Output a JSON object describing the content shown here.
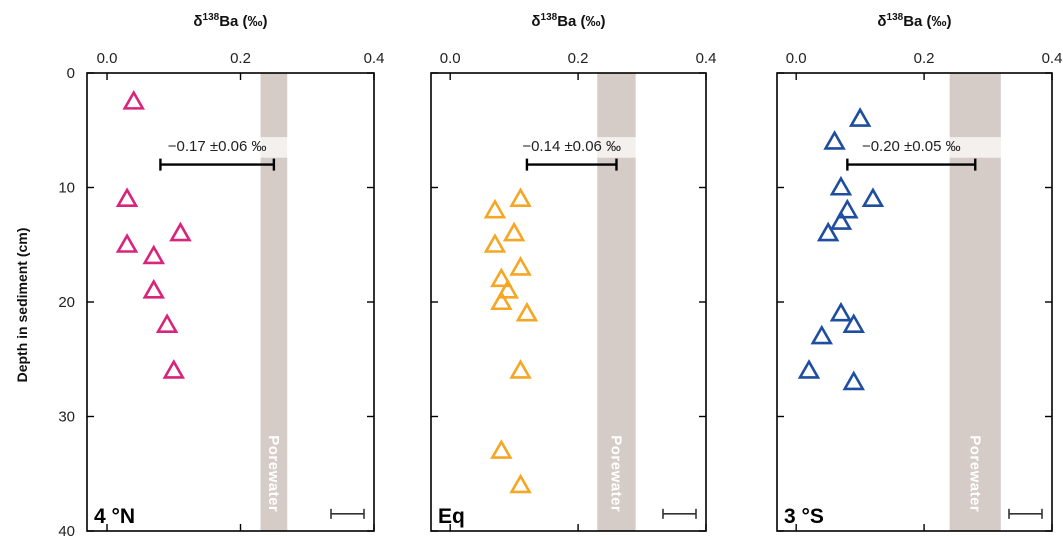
{
  "figure": {
    "ylabel": "Depth in sediment (cm)",
    "y_ticks": [
      "0",
      "10",
      "20",
      "30",
      "40"
    ]
  },
  "chart_data": [
    {
      "type": "scatter",
      "panel_label": "4 °N",
      "xlabel": "δ138Ba (‰)",
      "xlabel_prefix": "δ",
      "xlabel_sup": "138",
      "xlabel_suffix": "Ba (‰)",
      "ylabel": "Depth in sediment (cm)",
      "xlim": [
        -0.03,
        0.4
      ],
      "ylim": [
        0,
        40
      ],
      "x_ticks": [
        "0.0",
        "0.2",
        "0.4"
      ],
      "y_ticks": [
        "0",
        "10",
        "20",
        "30",
        "40"
      ],
      "y_inverted": true,
      "marker": "open-triangle",
      "color": "#d8247a",
      "points": [
        {
          "x": 0.04,
          "y": 2.5
        },
        {
          "x": 0.03,
          "y": 11
        },
        {
          "x": 0.03,
          "y": 15
        },
        {
          "x": 0.11,
          "y": 14
        },
        {
          "x": 0.07,
          "y": 16
        },
        {
          "x": 0.07,
          "y": 19
        },
        {
          "x": 0.09,
          "y": 22
        },
        {
          "x": 0.1,
          "y": 26
        }
      ],
      "porewater_band": {
        "label": "Porewater",
        "x_range": [
          0.23,
          0.27
        ],
        "color": "#d5ccc7"
      },
      "offset_annotation": {
        "label": "−0.17 ±0.06 ‰",
        "x_range": [
          0.08,
          0.25
        ],
        "y": 8
      },
      "scale_bar": {
        "y": 38.5
      }
    },
    {
      "type": "scatter",
      "panel_label": "Eq",
      "xlabel": "δ138Ba (‰)",
      "xlabel_prefix": "δ",
      "xlabel_sup": "138",
      "xlabel_suffix": "Ba (‰)",
      "xlim": [
        -0.03,
        0.4
      ],
      "ylim": [
        0,
        40
      ],
      "x_ticks": [
        "0.0",
        "0.2",
        "0.4"
      ],
      "y_inverted": true,
      "marker": "open-triangle",
      "color": "#f5a623",
      "points": [
        {
          "x": 0.11,
          "y": 11
        },
        {
          "x": 0.07,
          "y": 12
        },
        {
          "x": 0.1,
          "y": 14
        },
        {
          "x": 0.07,
          "y": 15
        },
        {
          "x": 0.11,
          "y": 17
        },
        {
          "x": 0.08,
          "y": 18
        },
        {
          "x": 0.09,
          "y": 19
        },
        {
          "x": 0.08,
          "y": 20
        },
        {
          "x": 0.12,
          "y": 21
        },
        {
          "x": 0.11,
          "y": 26
        },
        {
          "x": 0.08,
          "y": 33
        },
        {
          "x": 0.11,
          "y": 36
        }
      ],
      "porewater_band": {
        "label": "Porewater",
        "x_range": [
          0.23,
          0.29
        ],
        "color": "#d5ccc7"
      },
      "offset_annotation": {
        "label": "−0.14 ±0.06 ‰",
        "x_range": [
          0.12,
          0.26
        ],
        "y": 8
      },
      "scale_bar": {
        "y": 38.5
      }
    },
    {
      "type": "scatter",
      "panel_label": "3 °S",
      "xlabel": "δ138Ba (‰)",
      "xlabel_prefix": "δ",
      "xlabel_sup": "138",
      "xlabel_suffix": "Ba (‰)",
      "xlim": [
        -0.03,
        0.4
      ],
      "ylim": [
        0,
        40
      ],
      "x_ticks": [
        "0.0",
        "0.2",
        "0.4"
      ],
      "y_inverted": true,
      "marker": "open-triangle",
      "color": "#1f4e9e",
      "points": [
        {
          "x": 0.1,
          "y": 4
        },
        {
          "x": 0.06,
          "y": 6
        },
        {
          "x": 0.07,
          "y": 10
        },
        {
          "x": 0.12,
          "y": 11
        },
        {
          "x": 0.08,
          "y": 12
        },
        {
          "x": 0.07,
          "y": 13
        },
        {
          "x": 0.05,
          "y": 14
        },
        {
          "x": 0.07,
          "y": 21
        },
        {
          "x": 0.09,
          "y": 22
        },
        {
          "x": 0.04,
          "y": 23
        },
        {
          "x": 0.02,
          "y": 26
        },
        {
          "x": 0.09,
          "y": 27
        }
      ],
      "porewater_band": {
        "label": "Porewater",
        "x_range": [
          0.24,
          0.32
        ],
        "color": "#d5ccc7"
      },
      "offset_annotation": {
        "label": "−0.20 ±0.05 ‰",
        "x_range": [
          0.08,
          0.28
        ],
        "y": 8
      },
      "scale_bar": {
        "y": 38.5
      }
    }
  ]
}
